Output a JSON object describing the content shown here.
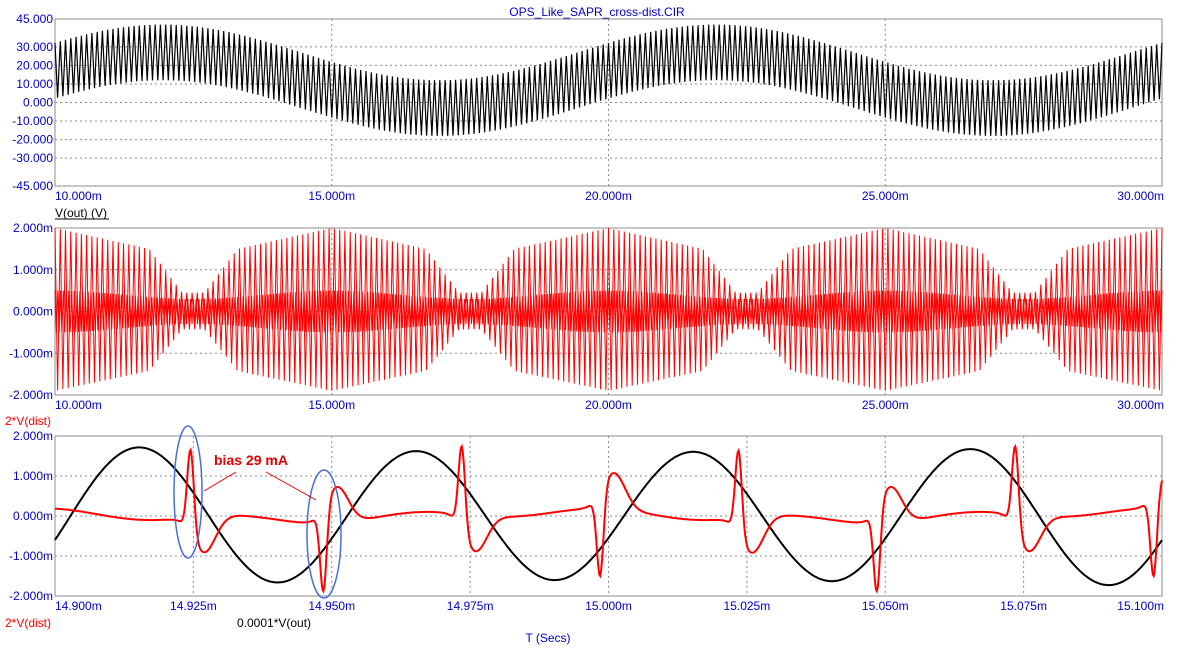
{
  "window": {
    "title": "OPS_Like_SAPR_cross-dist.CIR"
  },
  "colors": {
    "axis_text": "#0000c8",
    "grid": "#8c8c8c",
    "trace_black": "#000000",
    "trace_red": "#ff0000",
    "ellipse": "#4a6fd8",
    "background": "#ffffff"
  },
  "chart_data": [
    {
      "type": "line",
      "panel": "top",
      "description_units": "x in ms, y in V",
      "xlim": [
        10,
        30
      ],
      "ylim": [
        -45,
        45
      ],
      "x_ticks": [
        "10.000m",
        "15.000m",
        "20.000m",
        "25.000m",
        "30.000m"
      ],
      "y_ticks": [
        "45.000",
        "30.000",
        "20.000",
        "10.000",
        "0.000",
        "-10.000",
        "-20.000",
        "-30.000",
        "-45.000"
      ],
      "series": [
        {
          "name": "V(out) (V)",
          "color": "#000000",
          "envelope_center_amplitude": 25,
          "envelope_center_period_ms": 10,
          "envelope_center_phase_at_10ms": 0,
          "ripple_amplitude_pp": 30,
          "ripple_frequency_khz": 20
        }
      ]
    },
    {
      "type": "line",
      "panel": "middle",
      "xlim": [
        10,
        30
      ],
      "ylim": [
        -2,
        2
      ],
      "x_ticks": [
        "10.000m",
        "15.000m",
        "20.000m",
        "25.000m",
        "30.000m"
      ],
      "y_ticks": [
        "2.000m",
        "1.000m",
        "0.000m",
        "-1.000m",
        "-2.000m"
      ],
      "series": [
        {
          "name": "2*V(dist)",
          "color": "#ff0000",
          "burst_centers_ms": [
            10,
            15,
            20,
            25,
            30
          ],
          "burst_halfwidth_ms": 1.7,
          "burst_amplitude": 2.0,
          "quiet_amplitude": 0.45,
          "carrier_frequency_khz": 20
        }
      ]
    },
    {
      "type": "line",
      "panel": "bottom",
      "xlim": [
        14.9,
        15.1
      ],
      "ylim": [
        -2,
        2
      ],
      "xlabel": "T (Secs)",
      "x_ticks": [
        "14.900m",
        "14.925m",
        "14.950m",
        "14.975m",
        "15.000m",
        "15.025m",
        "15.050m",
        "15.075m",
        "15.100m"
      ],
      "y_ticks": [
        "2.000m",
        "1.000m",
        "0.000m",
        "-1.000m",
        "-2.000m"
      ],
      "series": [
        {
          "name": "2*V(dist)",
          "color": "#ff0000"
        },
        {
          "name": "0.0001*V(out)",
          "color": "#000000",
          "sine_frequency_khz": 20,
          "amplitude_range": [
            1.45,
            1.75
          ]
        }
      ],
      "annotations": [
        {
          "text": "bias 29 mA"
        }
      ]
    }
  ]
}
